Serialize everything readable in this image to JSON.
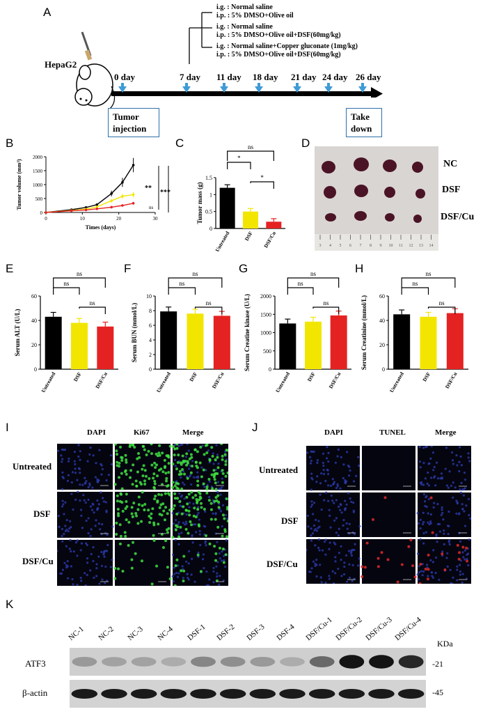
{
  "panels": {
    "A": "A",
    "B": "B",
    "C": "C",
    "D": "D",
    "E": "E",
    "F": "F",
    "G": "G",
    "H": "H",
    "I": "I",
    "J": "J",
    "K": "K"
  },
  "timeline": {
    "cell_line": "HepaG2",
    "days": [
      "0 day",
      "7 day",
      "11 day",
      "18 day",
      "21 day",
      "24 day",
      "26 day"
    ],
    "start_box": [
      "Tumor",
      "injection"
    ],
    "end_box": [
      "Take",
      "down"
    ],
    "treatments": [
      [
        "i.g. : Normal saline",
        "i.p. : 5% DMSO+Olive oil"
      ],
      [
        "i.g. : Normal saline",
        "i.p. : 5% DMSO+Olive oil+DSF(60mg/kg)"
      ],
      [
        "i.g. : Normal saline+Copper gluconate (1mg/kg)",
        "i.p. : 5% DMSO+Olive oil+DSF(60mg/kg)"
      ]
    ]
  },
  "chart_data": [
    {
      "id": "B",
      "type": "line",
      "ylabel": "Tumor volume (mm³)",
      "xlabel": "Times (days)",
      "xlim": [
        0,
        30
      ],
      "ylim": [
        0,
        2000
      ],
      "xticks": [
        0,
        10,
        20,
        30
      ],
      "yticks": [
        0,
        500,
        1000,
        1500,
        2000
      ],
      "series": [
        {
          "color": "#000000",
          "x": [
            0,
            7,
            11,
            14,
            18,
            21,
            24
          ],
          "y": [
            0,
            100,
            180,
            280,
            680,
            1080,
            1700
          ]
        },
        {
          "color": "#f2e600",
          "x": [
            0,
            7,
            11,
            14,
            18,
            21,
            24
          ],
          "y": [
            0,
            70,
            120,
            200,
            420,
            580,
            640
          ]
        },
        {
          "color": "#e52222",
          "x": [
            0,
            7,
            11,
            14,
            18,
            21,
            24
          ],
          "y": [
            0,
            60,
            90,
            130,
            190,
            250,
            330
          ]
        }
      ],
      "annotations": [
        "**",
        "ns",
        "***"
      ]
    },
    {
      "id": "C",
      "type": "bar",
      "ylabel": "Tumor mass (g)",
      "categories": [
        "Untreated",
        "DSF",
        "DSF/Cu"
      ],
      "values": [
        1.2,
        0.5,
        0.2
      ],
      "colors": [
        "#000000",
        "#f2e600",
        "#e52222"
      ],
      "ylim": [
        0,
        1.5
      ],
      "yticks": [
        0,
        0.5,
        1.0,
        1.5
      ],
      "annotations": [
        "ns",
        "*",
        "*"
      ]
    },
    {
      "id": "E",
      "type": "bar",
      "ylabel": "Serum ALT (U/L)",
      "categories": [
        "Untreated",
        "DSF",
        "DSF/Cu"
      ],
      "values": [
        43,
        38,
        35
      ],
      "colors": [
        "#000000",
        "#f2e600",
        "#e52222"
      ],
      "ylim": [
        0,
        60
      ],
      "yticks": [
        0,
        20,
        40,
        60
      ],
      "annotations": [
        "ns",
        "ns",
        "ns"
      ]
    },
    {
      "id": "F",
      "type": "bar",
      "ylabel": "Serum BUN (mmol/L)",
      "categories": [
        "Untreated",
        "DSF",
        "DSF/Cu"
      ],
      "values": [
        7.9,
        7.6,
        7.3
      ],
      "colors": [
        "#000000",
        "#f2e600",
        "#e52222"
      ],
      "ylim": [
        0,
        10
      ],
      "yticks": [
        0,
        2,
        4,
        6,
        8,
        10
      ],
      "annotations": [
        "ns",
        "ns",
        "ns"
      ]
    },
    {
      "id": "G",
      "type": "bar",
      "ylabel": "Serum Creatine kinase (U/L)",
      "categories": [
        "Untreated",
        "DSF",
        "DSF/Cu"
      ],
      "values": [
        1250,
        1300,
        1470
      ],
      "colors": [
        "#000000",
        "#f2e600",
        "#e52222"
      ],
      "ylim": [
        0,
        2000
      ],
      "yticks": [
        0,
        500,
        1000,
        1500,
        2000
      ],
      "annotations": [
        "ns",
        "ns",
        "ns"
      ]
    },
    {
      "id": "H",
      "type": "bar",
      "ylabel": "Serum Creatinine (mmol/L)",
      "categories": [
        "Untreated",
        "DSF",
        "DSF/Cu"
      ],
      "values": [
        45,
        43,
        46
      ],
      "colors": [
        "#000000",
        "#f2e600",
        "#e52222"
      ],
      "ylim": [
        0,
        60
      ],
      "yticks": [
        0,
        20,
        40,
        60
      ],
      "annotations": [
        "ns",
        "ns",
        "ns"
      ]
    }
  ],
  "photo_D": {
    "rows": [
      "NC",
      "DSF",
      "DSF/Cu"
    ],
    "ruler": [
      "3",
      "4",
      "5",
      "6",
      "7",
      "8",
      "9",
      "10",
      "11",
      "12",
      "13",
      "14"
    ]
  },
  "micro_I": {
    "cols": [
      "DAPI",
      "Ki67",
      "Merge"
    ],
    "rows": [
      "Untreated",
      "DSF",
      "DSF/Cu"
    ]
  },
  "micro_J": {
    "cols": [
      "DAPI",
      "TUNEL",
      "Merge"
    ],
    "rows": [
      "Untreated",
      "DSF",
      "DSF/Cu"
    ]
  },
  "blot_K": {
    "lanes": [
      "NC-1",
      "NC-2",
      "NC-3",
      "NC-4",
      "DSF-1",
      "DSF-2",
      "DSF-3",
      "DSF-4",
      "DSF/Cu-1",
      "DSF/Cu-2",
      "DSF/Cu-3",
      "DSF/Cu-4"
    ],
    "rows": [
      "ATF3",
      "β-actin"
    ],
    "kda_label": "KDa",
    "markers": [
      "-21",
      "-45"
    ],
    "atf3_intensity": [
      0.25,
      0.2,
      0.2,
      0.15,
      0.35,
      0.3,
      0.25,
      0.15,
      0.5,
      0.95,
      0.95,
      0.85
    ]
  }
}
